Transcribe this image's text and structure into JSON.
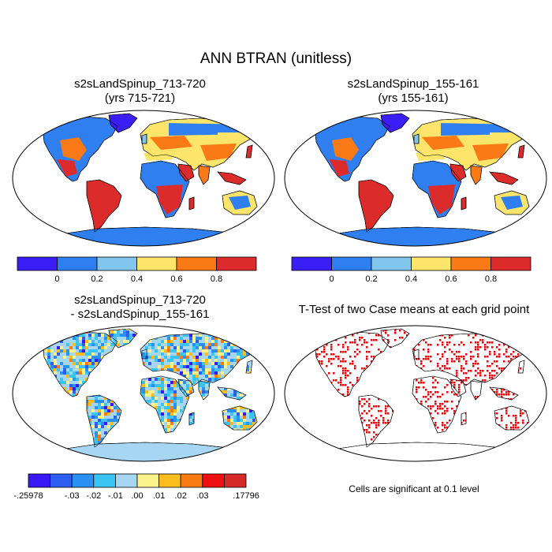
{
  "figure": {
    "title": "ANN BTRAN (unitless)"
  },
  "panels": [
    {
      "line1": "s2sLandSpinup_713-720",
      "line2": "(yrs 715-721)"
    },
    {
      "line1": "s2sLandSpinup_155-161",
      "line2": "(yrs 155-161)"
    },
    {
      "line1": "s2sLandSpinup_713-720",
      "line2": "- s2sLandSpinup_155-161"
    },
    {
      "line1": "T-Test of two Case means at each grid point",
      "line2": ""
    }
  ],
  "colorbar_main": {
    "colors": [
      "#3b1df5",
      "#2f7ff0",
      "#82c6ee",
      "#fce56a",
      "#fa7a17",
      "#dc2b2b"
    ],
    "labels": [
      "0",
      "0.2",
      "0.4",
      "0.6",
      "0.8"
    ]
  },
  "colorbar_diff": {
    "colors": [
      "#3a17f5",
      "#2d5ef0",
      "#2a91f2",
      "#39c4f4",
      "#a6d6f1",
      "#fbf28a",
      "#fbbd1e",
      "#f97b12",
      "#ef1111",
      "#d62a2a"
    ],
    "labels": [
      "-.25978",
      "-.03",
      "-.02",
      "-.01",
      ".00",
      ".01",
      ".02",
      ".03",
      ".17796"
    ]
  },
  "ttest_note": "Cells are significant at 0.1 level",
  "map_colors": {
    "ocean": "#ffffff",
    "outline": "#000000",
    "significant": "#e8000b"
  }
}
